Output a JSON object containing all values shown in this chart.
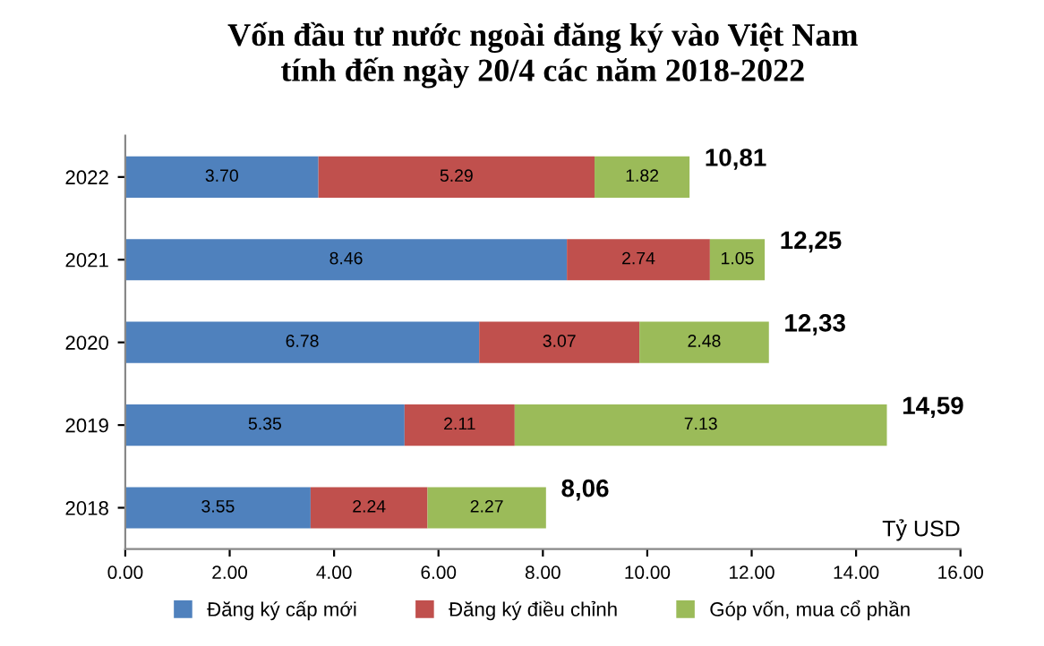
{
  "chart_data": {
    "type": "bar",
    "orientation": "horizontal",
    "stacked": true,
    "title": "Vốn đầu tư nước ngoài đăng ký vào Việt Nam\ntính đến ngày 20/4 các năm 2018-2022",
    "categories": [
      "2022",
      "2021",
      "2020",
      "2019",
      "2018"
    ],
    "series": [
      {
        "name": "Đăng ký cấp mới",
        "color": "#4f81bd",
        "values": [
          3.7,
          8.46,
          6.78,
          5.35,
          3.55
        ]
      },
      {
        "name": "Đăng ký điều chỉnh",
        "color": "#c0504d",
        "values": [
          5.29,
          2.74,
          3.07,
          2.11,
          2.24
        ]
      },
      {
        "name": "Góp vốn, mua cổ phần",
        "color": "#9bbb59",
        "values": [
          1.82,
          1.05,
          2.48,
          7.13,
          2.27
        ]
      }
    ],
    "value_labels": [
      [
        "3.70",
        "8.46",
        "6.78",
        "5.35",
        "3.55"
      ],
      [
        "5.29",
        "2.74",
        "3.07",
        "2.11",
        "2.24"
      ],
      [
        "1.82",
        "1.05",
        "2.48",
        "7.13",
        "2.27"
      ]
    ],
    "totals": [
      "10,81",
      "12,25",
      "12,33",
      "14,59",
      "8,06"
    ],
    "xlim": [
      0,
      16
    ],
    "xticks": [
      {
        "value": 0,
        "label": "0.00"
      },
      {
        "value": 2,
        "label": "2.00"
      },
      {
        "value": 4,
        "label": "4.00"
      },
      {
        "value": 6,
        "label": "6.00"
      },
      {
        "value": 8,
        "label": "8.00"
      },
      {
        "value": 10,
        "label": "10.00"
      },
      {
        "value": 12,
        "label": "12.00"
      },
      {
        "value": 14,
        "label": "14.00"
      },
      {
        "value": 16,
        "label": "16.00"
      }
    ],
    "annotations": [
      "Tỷ USD"
    ],
    "grid": false,
    "legend": "bottom"
  }
}
